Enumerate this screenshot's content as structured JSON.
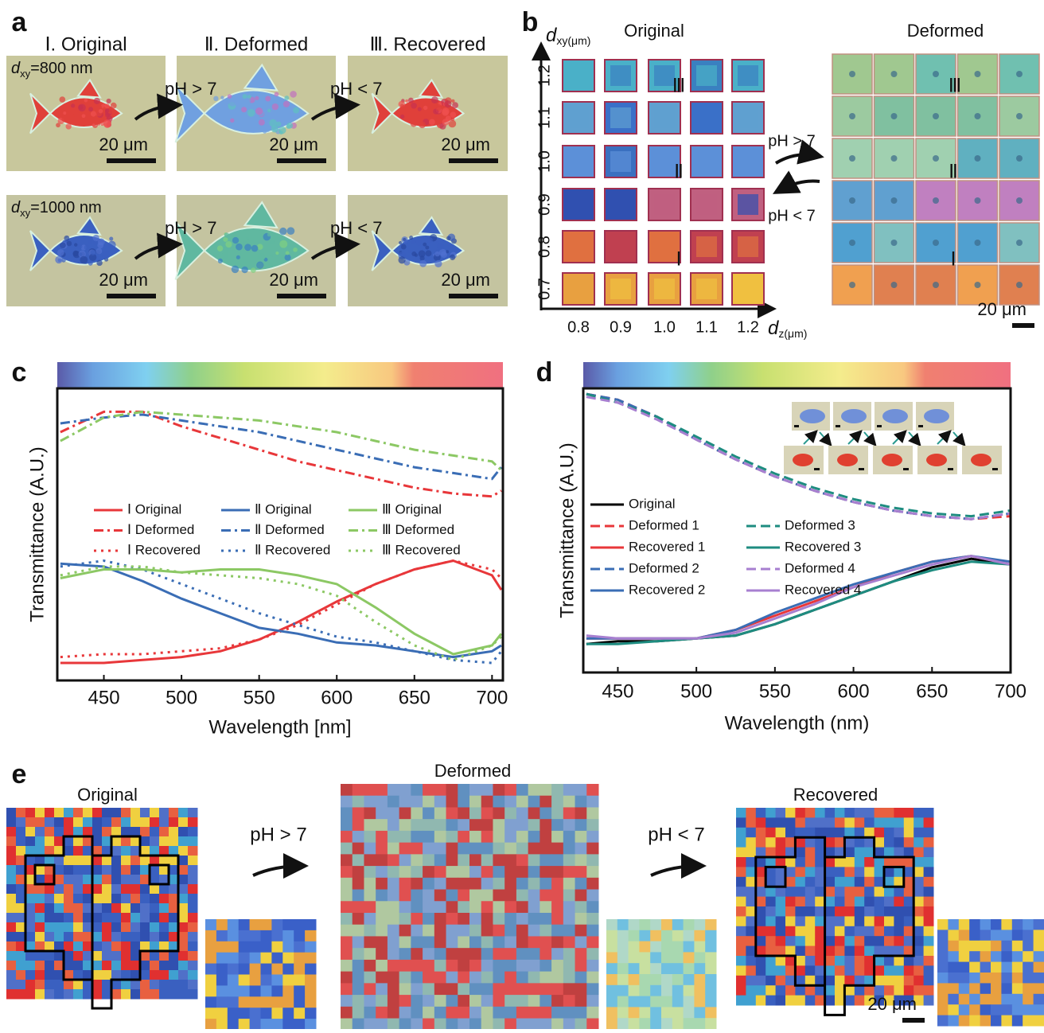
{
  "panels": {
    "a": {
      "label": "a",
      "columns": [
        "Ⅰ. Original",
        "Ⅱ. Deformed",
        "Ⅲ. Recovered"
      ],
      "rows": [
        {
          "d_symbol": "d",
          "d_subscript": "xy",
          "d_text": "=800 nm"
        },
        {
          "d_symbol": "d",
          "d_subscript": "xy",
          "d_text": "=1000 nm"
        }
      ],
      "forward": "pH > 7",
      "backward": "pH < 7",
      "scale": "20 μm"
    },
    "b": {
      "label": "b",
      "y_symbol": "d",
      "y_subscript": "xy(μm)",
      "yticks": [
        "1.2",
        "1.1",
        "1.0",
        "0.9",
        "0.8",
        "0.7"
      ],
      "x_symbol": "d",
      "x_subscript": "z(μm)",
      "xticks": [
        "0.8",
        "0.9",
        "1.0",
        "1.1",
        "1.2"
      ],
      "original": "Original",
      "deformed": "Deformed",
      "markers": [
        "Ⅲ",
        "Ⅱ",
        "Ⅰ"
      ],
      "forward": "pH > 7",
      "backward": "pH < 7",
      "scale": "20 μm"
    },
    "c": {
      "label": "c"
    },
    "d": {
      "label": "d"
    },
    "e": {
      "label": "e",
      "original": "Original",
      "deformed": "Deformed",
      "recovered": "Recovered",
      "forward": "pH > 7",
      "backward": "pH < 7",
      "scale": "20 μm"
    }
  },
  "chart_data": [
    {
      "type": "line",
      "x_label": "Wavelength [nm]",
      "y_label": "Transmittance (A.U.)",
      "xlim": [
        420,
        707
      ],
      "ylim": [
        0,
        1
      ],
      "xticks": [
        450,
        500,
        550,
        600,
        650,
        700
      ],
      "x": [
        422,
        450,
        475,
        500,
        525,
        550,
        575,
        600,
        625,
        650,
        675,
        700,
        706
      ],
      "series": [
        {
          "name": "Ⅰ Original",
          "color": "#e8373a",
          "dash": "solid",
          "values": [
            0.06,
            0.06,
            0.07,
            0.08,
            0.1,
            0.14,
            0.2,
            0.27,
            0.33,
            0.38,
            0.41,
            0.36,
            0.31
          ]
        },
        {
          "name": "Ⅰ Deformed",
          "color": "#e8373a",
          "dash": "dashdot",
          "values": [
            0.85,
            0.92,
            0.92,
            0.87,
            0.83,
            0.79,
            0.75,
            0.72,
            0.69,
            0.66,
            0.64,
            0.63,
            0.65
          ]
        },
        {
          "name": "Ⅰ Recovered",
          "color": "#e8373a",
          "dash": "dot",
          "values": [
            0.08,
            0.09,
            0.09,
            0.1,
            0.11,
            0.14,
            0.19,
            0.26,
            0.33,
            0.38,
            0.41,
            0.38,
            0.35
          ]
        },
        {
          "name": "Ⅱ Original",
          "color": "#3a6db5",
          "dash": "solid",
          "values": [
            0.4,
            0.39,
            0.34,
            0.28,
            0.23,
            0.18,
            0.16,
            0.13,
            0.12,
            0.1,
            0.08,
            0.1,
            0.12
          ]
        },
        {
          "name": "Ⅱ Deformed",
          "color": "#3a6db5",
          "dash": "dashdot",
          "values": [
            0.88,
            0.9,
            0.91,
            0.89,
            0.87,
            0.85,
            0.82,
            0.79,
            0.76,
            0.73,
            0.71,
            0.69,
            0.73
          ]
        },
        {
          "name": "Ⅱ Recovered",
          "color": "#3a6db5",
          "dash": "dot",
          "values": [
            0.39,
            0.41,
            0.38,
            0.33,
            0.28,
            0.23,
            0.19,
            0.15,
            0.13,
            0.1,
            0.07,
            0.06,
            0.1
          ]
        },
        {
          "name": "Ⅲ Original",
          "color": "#8cc864",
          "dash": "solid",
          "values": [
            0.35,
            0.38,
            0.38,
            0.37,
            0.38,
            0.38,
            0.36,
            0.33,
            0.25,
            0.16,
            0.09,
            0.12,
            0.16
          ]
        },
        {
          "name": "Ⅲ Deformed",
          "color": "#8cc864",
          "dash": "dashdot",
          "values": [
            0.82,
            0.9,
            0.92,
            0.91,
            0.9,
            0.89,
            0.87,
            0.85,
            0.82,
            0.79,
            0.77,
            0.75,
            0.72
          ]
        },
        {
          "name": "Ⅲ Recovered",
          "color": "#8cc864",
          "dash": "dot",
          "values": [
            0.36,
            0.39,
            0.39,
            0.37,
            0.36,
            0.35,
            0.33,
            0.29,
            0.2,
            0.12,
            0.07,
            0.12,
            0.15
          ]
        }
      ]
    },
    {
      "type": "line",
      "x_label": "Wavelength (nm)",
      "y_label": "Transmittance (A.U.)",
      "xlim": [
        428,
        700
      ],
      "ylim": [
        0,
        1
      ],
      "xticks": [
        450,
        500,
        550,
        600,
        650,
        700
      ],
      "x": [
        430,
        450,
        475,
        500,
        525,
        550,
        575,
        600,
        625,
        650,
        675,
        700
      ],
      "series": [
        {
          "name": "Original",
          "color": "#000000",
          "dash": "solid",
          "values": [
            0.1,
            0.11,
            0.11,
            0.12,
            0.13,
            0.17,
            0.22,
            0.27,
            0.32,
            0.37,
            0.4,
            0.38
          ]
        },
        {
          "name": "Deformed 1",
          "color": "#e8373a",
          "dash": "dash",
          "values": [
            0.98,
            0.96,
            0.9,
            0.82,
            0.75,
            0.69,
            0.64,
            0.6,
            0.57,
            0.55,
            0.54,
            0.55
          ]
        },
        {
          "name": "Recovered 1",
          "color": "#e8373a",
          "dash": "solid",
          "values": [
            0.12,
            0.12,
            0.12,
            0.12,
            0.15,
            0.2,
            0.25,
            0.3,
            0.35,
            0.39,
            0.41,
            0.38
          ]
        },
        {
          "name": "Deformed 2",
          "color": "#3a6db5",
          "dash": "dash",
          "values": [
            0.98,
            0.96,
            0.9,
            0.82,
            0.75,
            0.69,
            0.64,
            0.6,
            0.57,
            0.55,
            0.54,
            0.56
          ]
        },
        {
          "name": "Recovered 2",
          "color": "#3a6db5",
          "dash": "solid",
          "values": [
            0.12,
            0.12,
            0.12,
            0.12,
            0.15,
            0.21,
            0.26,
            0.31,
            0.35,
            0.39,
            0.41,
            0.39
          ]
        },
        {
          "name": "Deformed 3",
          "color": "#1e8c80",
          "dash": "dash",
          "values": [
            0.98,
            0.95,
            0.9,
            0.83,
            0.76,
            0.7,
            0.65,
            0.61,
            0.58,
            0.56,
            0.55,
            0.57
          ]
        },
        {
          "name": "Recovered 3",
          "color": "#1e8c80",
          "dash": "solid",
          "values": [
            0.1,
            0.1,
            0.11,
            0.12,
            0.13,
            0.17,
            0.22,
            0.27,
            0.32,
            0.36,
            0.39,
            0.38
          ]
        },
        {
          "name": "Deformed 4",
          "color": "#a77fd0",
          "dash": "dash",
          "values": [
            0.97,
            0.95,
            0.89,
            0.82,
            0.75,
            0.69,
            0.64,
            0.6,
            0.57,
            0.55,
            0.54,
            0.56
          ]
        },
        {
          "name": "Recovered 4",
          "color": "#a77fd0",
          "dash": "solid",
          "values": [
            0.13,
            0.12,
            0.12,
            0.12,
            0.14,
            0.19,
            0.24,
            0.3,
            0.34,
            0.38,
            0.41,
            0.38
          ]
        }
      ]
    }
  ]
}
